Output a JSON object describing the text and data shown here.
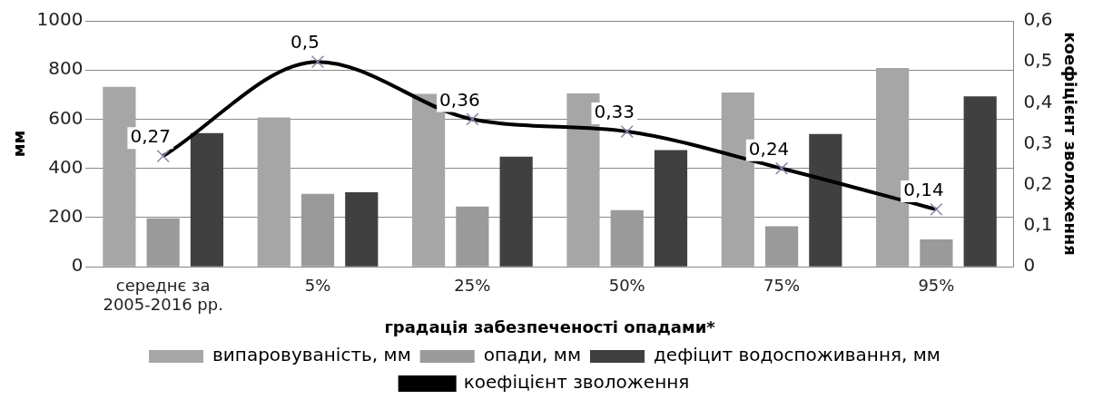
{
  "chart_data": {
    "type": "bar",
    "xlabel": "градація забезпеченості опадами*",
    "ylabel": "мм",
    "y2label": "коефіцієнт зволоження",
    "categories": [
      "середнє за\n2005-2016 рр.",
      "5%",
      "25%",
      "50%",
      "75%",
      "95%"
    ],
    "series": [
      {
        "name": "випаровуваність, мм",
        "color": "#a6a6a6",
        "values": [
          732,
          607,
          703,
          705,
          709,
          808
        ]
      },
      {
        "name": "опади, мм",
        "color": "#9a9a9a",
        "values": [
          197,
          297,
          245,
          230,
          165,
          111
        ]
      },
      {
        "name": "дефіцит водоспоживання, мм",
        "color": "#404040",
        "values": [
          544,
          303,
          448,
          475,
          540,
          693
        ]
      },
      {
        "name": "коефіцієнт зволоження",
        "type": "line",
        "axis": "y2",
        "color": "#000000",
        "marker": "cross",
        "values": [
          0.27,
          0.5,
          0.36,
          0.33,
          0.24,
          0.14
        ],
        "value_labels": [
          "0,27",
          "0,5",
          "0,36",
          "0,33",
          "0,24",
          "0,14"
        ]
      }
    ],
    "ylim": [
      0,
      1000
    ],
    "yticks": [
      0,
      200,
      400,
      600,
      800,
      1000
    ],
    "y2lim": [
      0,
      0.6
    ],
    "y2ticks": [
      {
        "value": 0,
        "label": "0"
      },
      {
        "value": 0.1,
        "label": "0,1"
      },
      {
        "value": 0.2,
        "label": "0,2"
      },
      {
        "value": 0.3,
        "label": "0,3"
      },
      {
        "value": 0.4,
        "label": "0,4"
      },
      {
        "value": 0.5,
        "label": "0,5"
      },
      {
        "value": 0.6,
        "label": "0,6"
      }
    ],
    "grid": "y",
    "legend": "bottom"
  }
}
